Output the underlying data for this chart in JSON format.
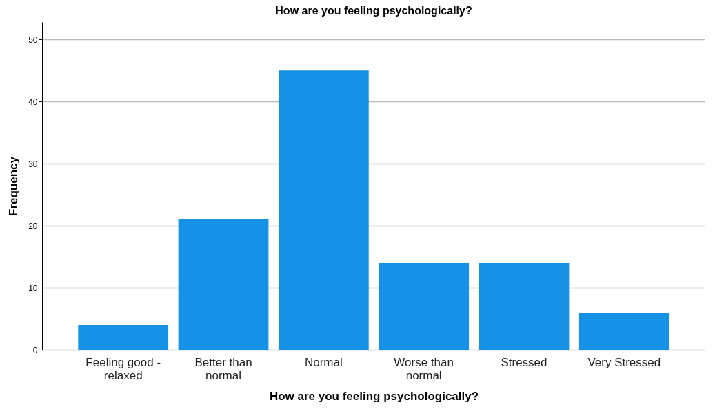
{
  "chart_data": {
    "type": "bar",
    "title": "How are you feeling psychologically?",
    "xlabel": "How are you feeling psychologically?",
    "ylabel": "Frequency",
    "categories": [
      "Feeling good - relaxed",
      "Better than normal",
      "Normal",
      "Worse than normal",
      "Stressed",
      "Very Stressed"
    ],
    "values": [
      4,
      21,
      45,
      14,
      14,
      6
    ],
    "color": "#1591e6",
    "ylim": [
      0,
      52.8
    ],
    "yticks": [
      0,
      10,
      20,
      30,
      40,
      50
    ],
    "grid": "y"
  }
}
